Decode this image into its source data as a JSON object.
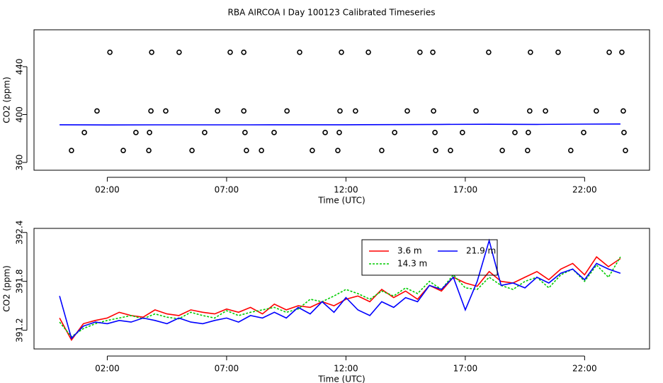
{
  "chart_data": [
    {
      "type": "scatter",
      "title": "RBA AIRCOA I  Day 100123  Calibrated Timeseries",
      "xlabel": "Time (UTC)",
      "ylabel": "CO2 (ppm)",
      "xlim": [
        -1.07,
        24.72
      ],
      "ylim": [
        353.5,
        470.8
      ],
      "xticks": [
        {
          "value": 2,
          "label": "02:00"
        },
        {
          "value": 7,
          "label": "07:00"
        },
        {
          "value": 12,
          "label": "12:00"
        },
        {
          "value": 17,
          "label": "17:00"
        },
        {
          "value": 22,
          "label": "22:00"
        }
      ],
      "yticks": [
        360,
        400,
        440
      ],
      "series": [
        {
          "color": "#000000",
          "style": "points",
          "x": [
            2.11,
            3.86,
            5.01,
            7.15,
            7.72,
            10.06,
            11.81,
            12.94,
            15.1,
            15.64,
            17.98,
            19.73,
            20.89,
            23.03,
            23.56,
            1.57,
            3.83,
            4.45,
            6.62,
            7.72,
            9.53,
            11.75,
            12.4,
            14.57,
            15.67,
            17.45,
            19.7,
            20.36,
            22.49,
            23.62,
            1.04,
            3.2,
            3.77,
            6.08,
            7.77,
            8.99,
            11.13,
            11.72,
            14.04,
            15.73,
            16.88,
            19.08,
            19.64,
            21.96,
            23.65,
            0.5,
            2.67,
            3.74,
            5.55,
            7.83,
            8.46,
            10.59,
            11.66,
            13.5,
            15.76,
            16.38,
            18.55,
            19.61,
            21.42,
            23.71
          ],
          "values": [
            452,
            452,
            452,
            452,
            452,
            452,
            452,
            452,
            452,
            452,
            452,
            452,
            452,
            452,
            452,
            403,
            403,
            403,
            403,
            403,
            403,
            403,
            403,
            403,
            403,
            403,
            403,
            403,
            403,
            403,
            385,
            385,
            385,
            385,
            385,
            385,
            385,
            385,
            385,
            385,
            385,
            385,
            385,
            385,
            385,
            370,
            370,
            370,
            370,
            370,
            370,
            370,
            370,
            370,
            370,
            370,
            370,
            370,
            370,
            370
          ]
        },
        {
          "color": "#0000ff",
          "style": "line",
          "x": [
            0,
            2,
            4,
            6,
            8,
            10,
            12,
            14,
            16,
            18,
            20,
            22,
            23.5
          ],
          "values": [
            391.5,
            391.3,
            391.4,
            391.4,
            391.4,
            391.5,
            391.5,
            391.6,
            391.8,
            391.9,
            391.8,
            392.0,
            392.1
          ]
        }
      ]
    },
    {
      "type": "line",
      "xlabel": "Time (UTC)",
      "ylabel": "CO2 (ppm)",
      "xlim": [
        -1.07,
        24.72
      ],
      "ylim": [
        390.97,
        392.45
      ],
      "xticks": [
        {
          "value": 2,
          "label": "02:00"
        },
        {
          "value": 7,
          "label": "07:00"
        },
        {
          "value": 12,
          "label": "12:00"
        },
        {
          "value": 17,
          "label": "17:00"
        },
        {
          "value": 22,
          "label": "22:00"
        }
      ],
      "yticks": [
        391.2,
        391.8,
        392.4
      ],
      "legend": true,
      "x": [
        0,
        0.5,
        1,
        1.5,
        2,
        2.5,
        3,
        3.5,
        4,
        4.5,
        5,
        5.5,
        6,
        6.5,
        7,
        7.5,
        8,
        8.5,
        9,
        9.5,
        10,
        10.5,
        11,
        11.5,
        12,
        12.5,
        13,
        13.5,
        14,
        14.5,
        15,
        15.5,
        16,
        16.5,
        17,
        17.5,
        18,
        18.5,
        19,
        19.5,
        20,
        20.5,
        21,
        21.5,
        22,
        22.5,
        23,
        23.5
      ],
      "series": [
        {
          "name": "3.6 m",
          "color": "#ff0000",
          "linestyle": "solid",
          "values": [
            391.35,
            391.08,
            391.28,
            391.32,
            391.35,
            391.42,
            391.38,
            391.36,
            391.45,
            391.4,
            391.38,
            391.45,
            391.42,
            391.4,
            391.46,
            391.42,
            391.48,
            391.4,
            391.52,
            391.45,
            391.5,
            391.48,
            391.55,
            391.5,
            391.58,
            391.62,
            391.55,
            391.7,
            391.6,
            391.68,
            391.58,
            391.75,
            391.68,
            391.85,
            391.78,
            391.74,
            391.92,
            391.8,
            391.78,
            391.85,
            391.92,
            391.82,
            391.95,
            392.02,
            391.88,
            392.1,
            391.98,
            392.08
          ]
        },
        {
          "name": "14.3 m",
          "color": "#00cc00",
          "linestyle": "dashed",
          "values": [
            391.3,
            391.12,
            391.22,
            391.28,
            391.32,
            391.35,
            391.38,
            391.34,
            391.4,
            391.36,
            391.34,
            391.42,
            391.38,
            391.35,
            391.44,
            391.38,
            391.42,
            391.45,
            391.48,
            391.42,
            391.46,
            391.58,
            391.55,
            391.62,
            391.7,
            391.65,
            391.58,
            391.68,
            391.62,
            391.72,
            391.65,
            391.8,
            391.7,
            391.88,
            391.72,
            391.7,
            391.85,
            391.75,
            391.7,
            391.8,
            391.85,
            391.72,
            391.88,
            391.95,
            391.8,
            392.0,
            391.85,
            392.1
          ]
        },
        {
          "name": "21.9 m",
          "color": "#0000ff",
          "linestyle": "solid",
          "values": [
            391.62,
            391.1,
            391.25,
            391.3,
            391.28,
            391.32,
            391.3,
            391.35,
            391.32,
            391.28,
            391.35,
            391.3,
            391.28,
            391.32,
            391.35,
            391.3,
            391.38,
            391.35,
            391.42,
            391.35,
            391.48,
            391.4,
            391.55,
            391.42,
            391.6,
            391.45,
            391.38,
            391.55,
            391.48,
            391.6,
            391.55,
            391.75,
            391.7,
            391.85,
            391.45,
            391.8,
            392.3,
            391.75,
            391.78,
            391.72,
            391.85,
            391.78,
            391.9,
            391.95,
            391.82,
            392.02,
            391.95,
            391.9
          ]
        }
      ]
    }
  ]
}
